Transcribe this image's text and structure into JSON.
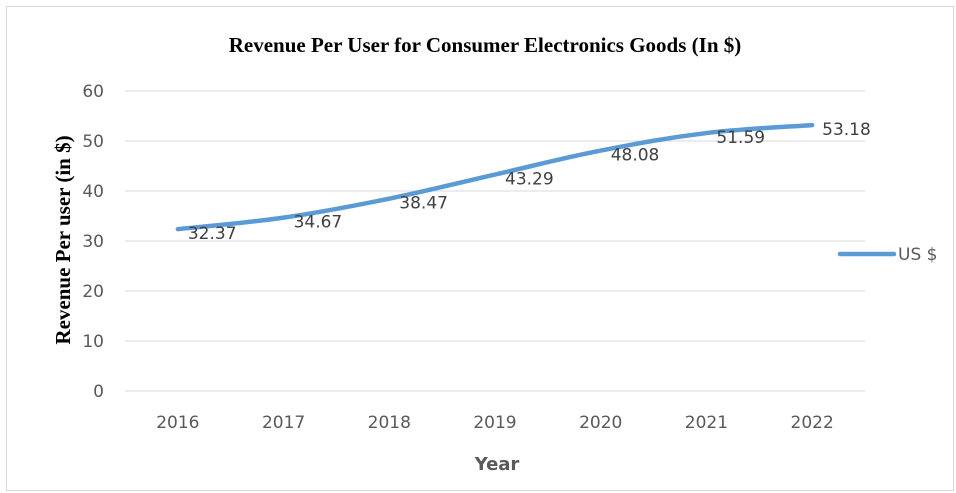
{
  "chart_data": {
    "type": "line",
    "title": "Revenue Per User for Consumer Electronics Goods (In $)",
    "xlabel": "Year",
    "ylabel": "Revenue Per user (in $)",
    "categories": [
      "2016",
      "2017",
      "2018",
      "2019",
      "2020",
      "2021",
      "2022"
    ],
    "y_ticks": [
      "0",
      "10",
      "20",
      "30",
      "40",
      "50",
      "60"
    ],
    "ylim": [
      0,
      60
    ],
    "grid": true,
    "legend_position": "right",
    "series": [
      {
        "name": "US $",
        "values": [
          32.37,
          34.67,
          38.47,
          43.29,
          48.08,
          51.59,
          53.18
        ],
        "labels": [
          "32.37",
          "34.67",
          "38.47",
          "43.29",
          "48.08",
          "51.59",
          "53.18"
        ],
        "color": "#5b9bd5"
      }
    ]
  }
}
